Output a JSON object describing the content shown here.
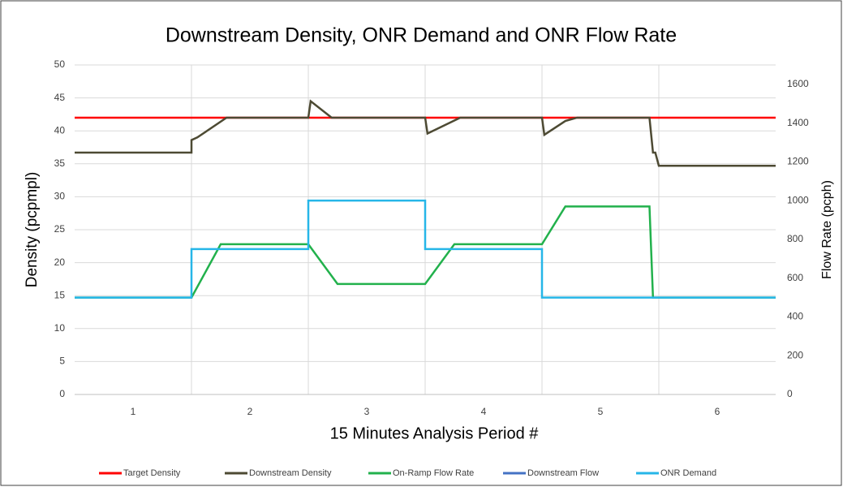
{
  "chart_data": {
    "type": "line",
    "title": "Downstream Density, ONR Demand and ONR Flow Rate",
    "x_label": "15 Minutes Analysis Period #",
    "y_label": "Density (pcpmpl)",
    "y2_label": "Flow Rate (pcph)",
    "xlim": [
      0,
      6
    ],
    "xticks": [
      {
        "value": 0.5,
        "label": "1"
      },
      {
        "value": 1.5,
        "label": "2"
      },
      {
        "value": 2.5,
        "label": "3"
      },
      {
        "value": 3.5,
        "label": "4"
      },
      {
        "value": 4.5,
        "label": "5"
      },
      {
        "value": 5.5,
        "label": "6"
      }
    ],
    "ylim": [
      0,
      50
    ],
    "yticks": [
      0,
      5,
      10,
      15,
      20,
      25,
      30,
      35,
      40,
      45,
      50
    ],
    "y2lim": [
      0,
      1700
    ],
    "y2ticks": [
      0,
      200,
      400,
      600,
      800,
      1000,
      1200,
      1400,
      1600
    ],
    "grid": true,
    "legend": "bottom",
    "series": [
      {
        "name": "Target Density",
        "color": "#ff0000",
        "x": [
          0,
          6
        ],
        "values": [
          42,
          42
        ]
      },
      {
        "name": "Downstream Density",
        "color": "#4d4a33",
        "x": [
          0,
          1,
          1,
          1.05,
          1.3,
          2,
          2.02,
          2.2,
          3,
          3.02,
          3.3,
          4,
          4.02,
          4.2,
          4.3,
          4.92,
          4.95,
          4.97,
          5,
          6
        ],
        "values": [
          36.7,
          36.7,
          38.6,
          39,
          42,
          42,
          44.5,
          42,
          42,
          39.6,
          42,
          42,
          39.4,
          41.5,
          42,
          42,
          36.7,
          36.7,
          34.7,
          34.7
        ]
      },
      {
        "name": "On-Ramp Flow Rate",
        "color": "#22b14c",
        "axis": "y2",
        "x": [
          0,
          1,
          1.25,
          2,
          2.25,
          3,
          3.25,
          4,
          4.2,
          4.92,
          4.95,
          6
        ],
        "values": [
          500,
          500,
          775,
          775,
          570,
          570,
          775,
          775,
          970,
          970,
          500,
          500
        ]
      },
      {
        "name": "Downstream Flow",
        "color": "#4472c4",
        "axis": "y2",
        "x": [],
        "values": []
      },
      {
        "name": "ONR Demand",
        "color": "#26b6e8",
        "axis": "y2",
        "x": [
          0,
          1,
          1,
          2,
          2,
          3,
          3,
          4,
          4,
          6
        ],
        "values": [
          500,
          500,
          750,
          750,
          1000,
          1000,
          750,
          750,
          500,
          500
        ]
      }
    ]
  }
}
